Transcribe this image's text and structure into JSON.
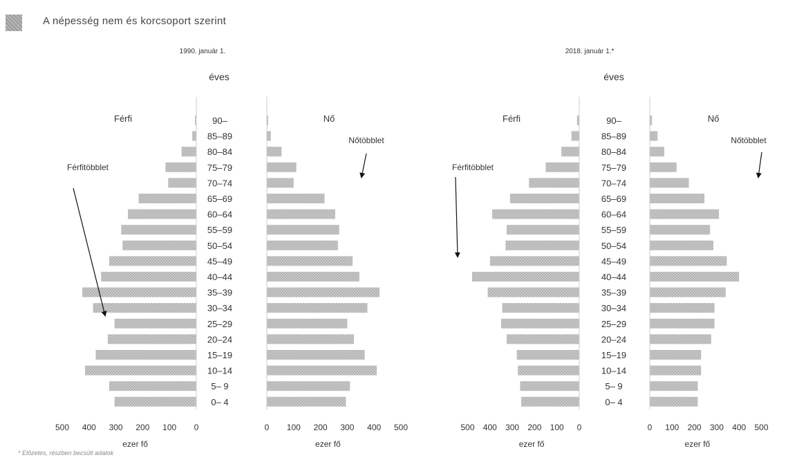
{
  "page": {
    "title": "A népesség nem és korcsoport szerint",
    "footnote": "* Előzetes, részben becsült adatok"
  },
  "chart_data": [
    {
      "type": "bar",
      "title": "1990. január 1.",
      "center_label": "éves",
      "left_label": "Férfi",
      "right_label": "Nő",
      "left_annotation": "Férfitöbblet",
      "right_annotation": "Nőtöbblet",
      "xlabel": "ezer fő",
      "xlim": [
        0,
        500
      ],
      "ticks": [
        0,
        100,
        200,
        300,
        400,
        500
      ],
      "categories": [
        "90–",
        "85–89",
        "80–84",
        "75–79",
        "70–74",
        "65–69",
        "60–64",
        "55–59",
        "50–54",
        "45–49",
        "40–44",
        "35–39",
        "30–34",
        "25–29",
        "20–24",
        "15–19",
        "10–14",
        "5– 9",
        "0– 4"
      ],
      "series": [
        {
          "name": "Férfi",
          "values": [
            5,
            15,
            55,
            115,
            105,
            215,
            255,
            280,
            275,
            325,
            355,
            425,
            385,
            305,
            330,
            375,
            415,
            325,
            305
          ]
        },
        {
          "name": "Nő",
          "values": [
            5,
            15,
            55,
            110,
            100,
            215,
            255,
            270,
            265,
            320,
            345,
            420,
            375,
            300,
            325,
            365,
            410,
            310,
            295
          ]
        }
      ]
    },
    {
      "type": "bar",
      "title": "2018. január 1.*",
      "center_label": "éves",
      "left_label": "Férfi",
      "right_label": "Nő",
      "left_annotation": "Férfitöbblet",
      "right_annotation": "Nőtöbblet",
      "xlabel": "ezer fő",
      "xlim": [
        0,
        500
      ],
      "ticks": [
        0,
        100,
        200,
        300,
        400,
        500
      ],
      "categories": [
        "90–",
        "85–89",
        "80–84",
        "75–79",
        "70–74",
        "65–69",
        "60–64",
        "55–59",
        "50–54",
        "45–49",
        "40–44",
        "35–39",
        "30–34",
        "25–29",
        "20–24",
        "15–19",
        "10–14",
        "5– 9",
        "0– 4"
      ],
      "series": [
        {
          "name": "Férfi",
          "values": [
            10,
            35,
            80,
            150,
            225,
            310,
            390,
            325,
            330,
            400,
            480,
            410,
            345,
            350,
            325,
            280,
            275,
            265,
            260
          ]
        },
        {
          "name": "Nő",
          "values": [
            10,
            35,
            65,
            120,
            175,
            245,
            310,
            270,
            285,
            345,
            400,
            340,
            290,
            290,
            275,
            230,
            230,
            215,
            215
          ]
        }
      ]
    }
  ]
}
